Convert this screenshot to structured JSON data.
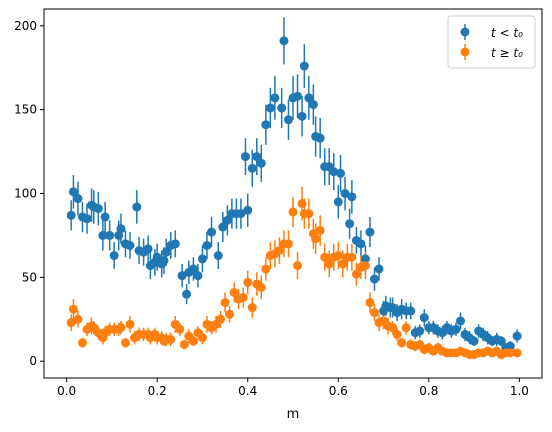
{
  "chart_data": {
    "type": "scatter",
    "xlabel": "m",
    "ylabel": "",
    "xlim": [
      -0.05,
      1.05
    ],
    "ylim": [
      -10,
      210
    ],
    "xticks": [
      0.0,
      0.2,
      0.4,
      0.6,
      0.8,
      1.0
    ],
    "xtick_labels": [
      "0.0",
      "0.2",
      "0.4",
      "0.6",
      "0.8",
      "1.0"
    ],
    "yticks": [
      0,
      50,
      100,
      150,
      200
    ],
    "ytick_labels": [
      "0",
      "50",
      "100",
      "150",
      "200"
    ],
    "grid": false,
    "legend_position": "top-right",
    "series": [
      {
        "name": "t < t0",
        "color": "#1f77b4",
        "x": [
          0.01,
          0.015,
          0.025,
          0.035,
          0.045,
          0.055,
          0.06,
          0.07,
          0.08,
          0.085,
          0.095,
          0.105,
          0.115,
          0.12,
          0.13,
          0.14,
          0.155,
          0.16,
          0.17,
          0.18,
          0.185,
          0.195,
          0.2,
          0.21,
          0.215,
          0.22,
          0.23,
          0.24,
          0.255,
          0.265,
          0.27,
          0.28,
          0.29,
          0.3,
          0.31,
          0.32,
          0.335,
          0.345,
          0.355,
          0.365,
          0.375,
          0.385,
          0.395,
          0.4,
          0.41,
          0.42,
          0.43,
          0.44,
          0.45,
          0.46,
          0.475,
          0.48,
          0.49,
          0.5,
          0.51,
          0.52,
          0.525,
          0.535,
          0.545,
          0.55,
          0.56,
          0.57,
          0.58,
          0.59,
          0.6,
          0.605,
          0.615,
          0.625,
          0.63,
          0.64,
          0.65,
          0.66,
          0.67,
          0.68,
          0.69,
          0.7,
          0.705,
          0.715,
          0.72,
          0.73,
          0.74,
          0.75,
          0.76,
          0.77,
          0.78,
          0.79,
          0.8,
          0.81,
          0.82,
          0.83,
          0.84,
          0.85,
          0.86,
          0.87,
          0.88,
          0.89,
          0.9,
          0.91,
          0.92,
          0.93,
          0.94,
          0.95,
          0.96,
          0.97,
          0.98,
          0.995
        ],
        "y": [
          87,
          101,
          97,
          86,
          85,
          93,
          92,
          91,
          75,
          86,
          75,
          63,
          75,
          79,
          70,
          69,
          92,
          66,
          65,
          67,
          57,
          59,
          62,
          58,
          60,
          65,
          69,
          70,
          51,
          40,
          53,
          55,
          51,
          61,
          69,
          77,
          63,
          80,
          84,
          88,
          88,
          88,
          122,
          90,
          115,
          122,
          118,
          141,
          151,
          157,
          151,
          191,
          144,
          157,
          158,
          146,
          176,
          157,
          153,
          134,
          133,
          116,
          116,
          113,
          95,
          112,
          100,
          82,
          98,
          72,
          70,
          61,
          77,
          49,
          55,
          30,
          33,
          32,
          32,
          29,
          31,
          30,
          30,
          17,
          18,
          26,
          20,
          20,
          18,
          17,
          20,
          18,
          19,
          24,
          16,
          14,
          12,
          18,
          16,
          14,
          12,
          13,
          12,
          8,
          9,
          15
        ],
        "yerr": [
          9,
          10,
          10,
          9,
          9,
          10,
          10,
          10,
          9,
          9,
          9,
          8,
          9,
          9,
          8,
          8,
          10,
          8,
          8,
          8,
          8,
          8,
          8,
          8,
          8,
          8,
          8,
          8,
          7,
          6,
          7,
          7,
          7,
          8,
          8,
          9,
          8,
          9,
          9,
          9,
          9,
          9,
          11,
          10,
          11,
          11,
          11,
          12,
          12,
          13,
          12,
          14,
          12,
          13,
          13,
          12,
          13,
          13,
          12,
          12,
          12,
          11,
          11,
          11,
          10,
          11,
          10,
          9,
          10,
          8,
          8,
          8,
          9,
          7,
          7,
          6,
          6,
          6,
          6,
          5,
          6,
          5,
          5,
          4,
          4,
          5,
          4,
          4,
          4,
          4,
          4,
          4,
          4,
          5,
          4,
          4,
          3,
          4,
          4,
          4,
          3,
          4,
          3,
          3,
          3,
          4
        ]
      },
      {
        "name": "t ≥ t0",
        "color": "#ff7f0e",
        "x": [
          0.01,
          0.015,
          0.025,
          0.035,
          0.045,
          0.055,
          0.06,
          0.07,
          0.08,
          0.085,
          0.095,
          0.105,
          0.115,
          0.12,
          0.13,
          0.14,
          0.15,
          0.16,
          0.17,
          0.18,
          0.185,
          0.195,
          0.2,
          0.21,
          0.215,
          0.22,
          0.23,
          0.24,
          0.25,
          0.26,
          0.27,
          0.28,
          0.29,
          0.3,
          0.31,
          0.32,
          0.33,
          0.34,
          0.35,
          0.36,
          0.37,
          0.38,
          0.39,
          0.4,
          0.41,
          0.42,
          0.43,
          0.44,
          0.45,
          0.46,
          0.47,
          0.48,
          0.49,
          0.5,
          0.51,
          0.52,
          0.525,
          0.535,
          0.545,
          0.55,
          0.56,
          0.57,
          0.58,
          0.59,
          0.6,
          0.61,
          0.62,
          0.63,
          0.64,
          0.65,
          0.66,
          0.67,
          0.68,
          0.69,
          0.7,
          0.71,
          0.72,
          0.73,
          0.74,
          0.75,
          0.76,
          0.77,
          0.78,
          0.79,
          0.8,
          0.81,
          0.82,
          0.83,
          0.84,
          0.85,
          0.86,
          0.87,
          0.88,
          0.89,
          0.9,
          0.91,
          0.92,
          0.93,
          0.94,
          0.95,
          0.96,
          0.97,
          0.98,
          0.995
        ],
        "y": [
          23,
          31,
          25,
          11,
          19,
          21,
          20,
          17,
          14,
          17,
          19,
          19,
          19,
          20,
          11,
          22,
          14,
          16,
          16,
          16,
          14,
          16,
          14,
          14,
          12,
          13,
          13,
          22,
          19,
          10,
          15,
          12,
          17,
          14,
          22,
          20,
          22,
          25,
          35,
          28,
          41,
          37,
          38,
          47,
          32,
          46,
          44,
          55,
          63,
          64,
          66,
          70,
          70,
          89,
          57,
          94,
          88,
          88,
          76,
          73,
          78,
          62,
          58,
          62,
          63,
          58,
          62,
          62,
          52,
          56,
          57,
          35,
          29,
          23,
          24,
          21,
          20,
          16,
          11,
          20,
          10,
          9,
          10,
          7,
          8,
          6,
          8,
          6,
          5,
          5,
          5,
          6,
          5,
          4,
          4,
          5,
          5,
          6,
          5,
          6,
          4,
          5,
          5,
          5
        ],
        "yerr": [
          5,
          6,
          5,
          3,
          4,
          5,
          4,
          4,
          4,
          4,
          4,
          4,
          4,
          4,
          3,
          5,
          4,
          4,
          4,
          4,
          4,
          4,
          4,
          4,
          3,
          4,
          4,
          5,
          4,
          3,
          4,
          3,
          4,
          4,
          5,
          4,
          5,
          5,
          6,
          5,
          6,
          6,
          6,
          7,
          6,
          7,
          7,
          7,
          8,
          8,
          8,
          8,
          8,
          9,
          8,
          10,
          9,
          9,
          9,
          9,
          9,
          8,
          8,
          8,
          8,
          8,
          8,
          8,
          7,
          7,
          8,
          6,
          5,
          5,
          5,
          5,
          4,
          4,
          3,
          4,
          3,
          3,
          3,
          3,
          3,
          2,
          3,
          2,
          2,
          2,
          2,
          2,
          2,
          2,
          2,
          2,
          2,
          2,
          2,
          2,
          2,
          2,
          2,
          2
        ]
      }
    ]
  },
  "legend": {
    "items": [
      {
        "label": "t < t₀",
        "color": "#1f77b4"
      },
      {
        "label": "t ≥ t₀",
        "color": "#ff7f0e"
      }
    ]
  }
}
